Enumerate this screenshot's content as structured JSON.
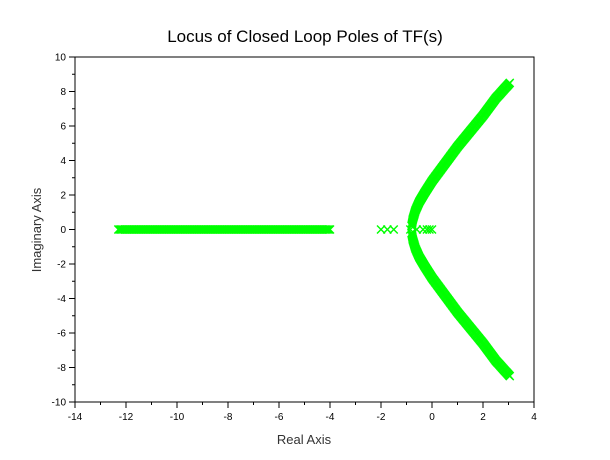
{
  "chart_data": {
    "type": "scatter",
    "title": "Locus of Closed Loop Poles of TF(s)",
    "xlabel": "Real Axis",
    "ylabel": "Imaginary Axis",
    "xlim": [
      -14,
      4
    ],
    "ylim": [
      -10,
      10
    ],
    "x_ticks": [
      "-14",
      "-12",
      "-10",
      "-8",
      "-6",
      "-4",
      "-2",
      "0",
      "2",
      "4"
    ],
    "y_ticks": [
      "10",
      "8",
      "6",
      "4",
      "2",
      "0",
      "-2",
      "-4",
      "-6",
      "-8",
      "-10"
    ],
    "grid": false,
    "legend": "none",
    "marker": "x",
    "marker_color": "#00ff00",
    "series": [
      {
        "values": [
          {
            "x_range": [
              -12.3,
              -4.0
            ],
            "y": 0,
            "spacing": 0.05
          }
        ]
      },
      {
        "points": [
          [
            -2.0,
            0
          ],
          [
            -1.75,
            0
          ],
          [
            -1.5,
            0
          ],
          [
            -0.85,
            0
          ],
          [
            -0.6,
            0
          ],
          [
            -0.35,
            0
          ],
          [
            -0.2,
            0
          ],
          [
            -0.1,
            0
          ],
          [
            0.0,
            0
          ]
        ]
      },
      {
        "branch_curve": "upper",
        "points": [
          [
            -0.8,
            0.2
          ],
          [
            -0.75,
            0.6
          ],
          [
            -0.65,
            1.1
          ],
          [
            -0.5,
            1.6
          ],
          [
            -0.3,
            2.1
          ],
          [
            0.0,
            2.8
          ],
          [
            0.5,
            3.8
          ],
          [
            1.0,
            4.8
          ],
          [
            1.5,
            5.7
          ],
          [
            2.0,
            6.6
          ],
          [
            2.5,
            7.6
          ],
          [
            3.05,
            8.5
          ]
        ]
      },
      {
        "branch_curve": "lower",
        "points": [
          [
            -0.8,
            -0.2
          ],
          [
            -0.75,
            -0.6
          ],
          [
            -0.65,
            -1.1
          ],
          [
            -0.5,
            -1.6
          ],
          [
            -0.3,
            -2.1
          ],
          [
            0.0,
            -2.8
          ],
          [
            0.5,
            -3.8
          ],
          [
            1.0,
            -4.8
          ],
          [
            1.5,
            -5.7
          ],
          [
            2.0,
            -6.6
          ],
          [
            2.5,
            -7.6
          ],
          [
            3.05,
            -8.5
          ]
        ]
      }
    ]
  }
}
